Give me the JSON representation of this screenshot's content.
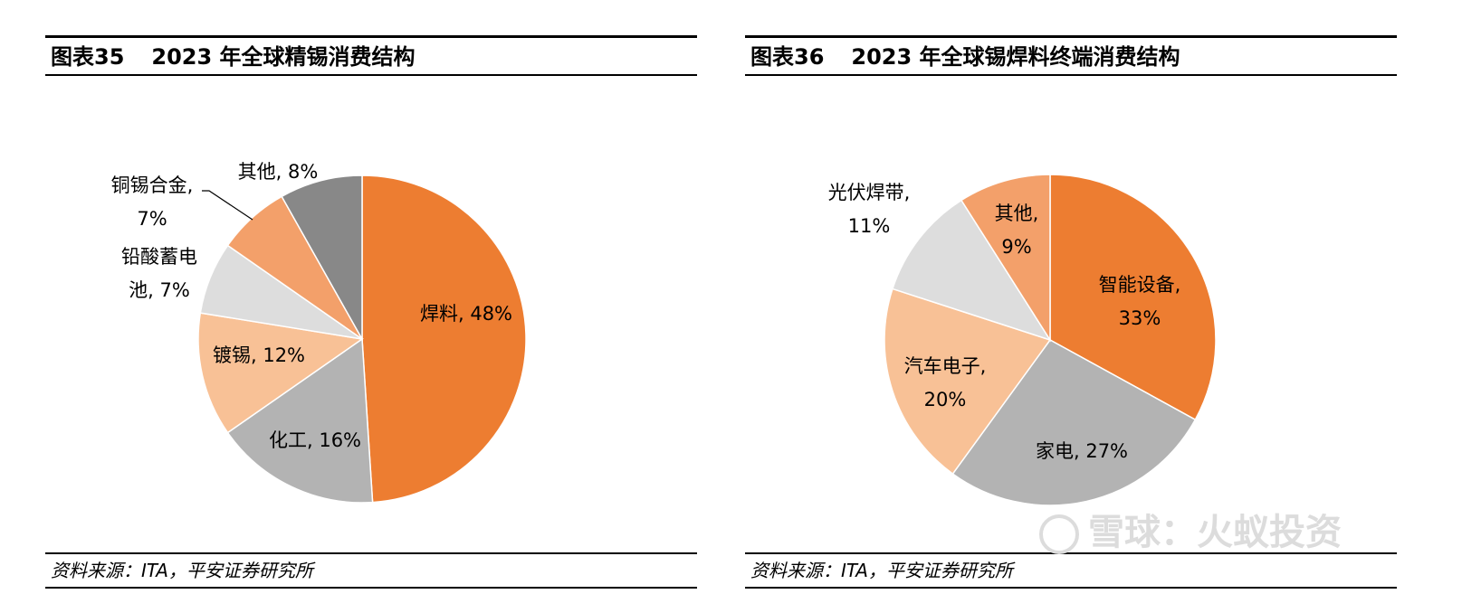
{
  "charts": [
    {
      "title_num": "图表35",
      "title_text": "2023 年全球精锡消费结构",
      "source": "资料来源：ITA，平安证券研究所"
    },
    {
      "title_num": "图表36",
      "title_text": "2023 年全球锡焊料终端消费结构",
      "source": "资料来源：ITA，平安证券研究所"
    }
  ],
  "watermark": "雪球：火蚁投资",
  "chart_data": [
    {
      "type": "pie",
      "title": "2023 年全球精锡消费结构",
      "slices": [
        {
          "label_lines": [
            "焊料, 48%"
          ],
          "category": "焊料",
          "value": 48,
          "color": "#ED7D31"
        },
        {
          "label_lines": [
            "化工, 16%"
          ],
          "category": "化工",
          "value": 16,
          "color": "#B3B3B3"
        },
        {
          "label_lines": [
            "镀锡, 12%"
          ],
          "category": "镀锡",
          "value": 12,
          "color": "#F8C196"
        },
        {
          "label_lines": [
            "铅酸蓄电",
            "池, 7%"
          ],
          "category": "铅酸蓄电池",
          "value": 7,
          "color": "#DDDDDD"
        },
        {
          "label_lines": [
            "铜锡合金,",
            "7%"
          ],
          "category": "铜锡合金",
          "value": 7,
          "color": "#F3A06A"
        },
        {
          "label_lines": [
            "其他, 8%"
          ],
          "category": "其他",
          "value": 8,
          "color": "#888888"
        }
      ]
    },
    {
      "type": "pie",
      "title": "2023 年全球锡焊料终端消费结构",
      "slices": [
        {
          "label_lines": [
            "智能设备,",
            "33%"
          ],
          "category": "智能设备",
          "value": 33,
          "color": "#ED7D31"
        },
        {
          "label_lines": [
            "家电, 27%"
          ],
          "category": "家电",
          "value": 27,
          "color": "#B3B3B3"
        },
        {
          "label_lines": [
            "汽车电子,",
            "20%"
          ],
          "category": "汽车电子",
          "value": 20,
          "color": "#F8C196"
        },
        {
          "label_lines": [
            "光伏焊带,",
            "11%"
          ],
          "category": "光伏焊带",
          "value": 11,
          "color": "#DDDDDD"
        },
        {
          "label_lines": [
            "其他,",
            "9%"
          ],
          "category": "其他",
          "value": 9,
          "color": "#F3A06A"
        }
      ]
    }
  ]
}
